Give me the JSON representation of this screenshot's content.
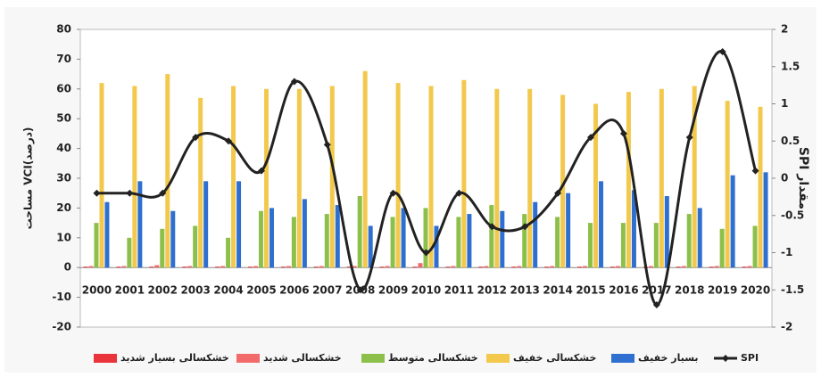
{
  "chart_data": {
    "type": "bar",
    "categories": [
      "2000",
      "2001",
      "2002",
      "2003",
      "2004",
      "2005",
      "2006",
      "2007",
      "2008",
      "2009",
      "2010",
      "2011",
      "2012",
      "2013",
      "2014",
      "2015",
      "2016",
      "2017",
      "2018",
      "2019",
      "2020"
    ],
    "series": [
      {
        "name": "خشکسالی بسیار شدید",
        "color": "#e8343a",
        "values": [
          0.3,
          0.3,
          0.3,
          0.3,
          0.3,
          0.3,
          0.3,
          0.3,
          0.3,
          0.3,
          0.3,
          0.3,
          0.3,
          0.3,
          0.3,
          0.3,
          0.3,
          0.3,
          0.3,
          0.3,
          0.3
        ]
      },
      {
        "name": "خشکسالی شدید",
        "color": "#f26a6a",
        "values": [
          0.5,
          0.5,
          0.8,
          0.5,
          0.5,
          0.5,
          0.5,
          0.5,
          0.5,
          0.5,
          1.5,
          0.5,
          0.5,
          0.5,
          0.5,
          0.5,
          0.5,
          0.5,
          0.5,
          0.5,
          0.5
        ]
      },
      {
        "name": "خشکسالی متوسط",
        "color": "#8dc04a",
        "values": [
          15,
          10,
          13,
          14,
          10,
          19,
          17,
          18,
          24,
          17,
          20,
          17,
          21,
          18,
          17,
          15,
          15,
          15,
          18,
          13,
          14
        ]
      },
      {
        "name": "خشکسالی خفیف",
        "color": "#f2c94c",
        "values": [
          62,
          61,
          65,
          57,
          61,
          60,
          60,
          61,
          66,
          62,
          61,
          63,
          60,
          60,
          58,
          55,
          59,
          60,
          61,
          56,
          54
        ]
      },
      {
        "name": "بسیار خفیف",
        "color": "#2f6fd0",
        "values": [
          22,
          29,
          19,
          29,
          29,
          20,
          23,
          21,
          14,
          20,
          14,
          18,
          19,
          22,
          25,
          29,
          26,
          24,
          20,
          31,
          32
        ]
      },
      {
        "name": "SPI",
        "color": "#222222",
        "axis": "y2",
        "values": [
          -0.2,
          -0.2,
          -0.2,
          0.55,
          0.5,
          0.1,
          1.3,
          0.45,
          -1.5,
          -0.2,
          -1.0,
          -0.2,
          -0.65,
          -0.65,
          -0.2,
          0.55,
          0.6,
          -1.7,
          0.55,
          1.7,
          0.1
        ]
      }
    ],
    "ylabel": "مساحت VCI(درصد)",
    "y2label": "SPI مقدار",
    "ylim": [
      -20,
      80
    ],
    "yticks": [
      -20,
      -10,
      0,
      10,
      20,
      30,
      40,
      50,
      60,
      70,
      80
    ],
    "y2lim": [
      -2,
      2
    ],
    "y2ticks": [
      -2,
      -1.5,
      -1,
      -0.5,
      0,
      0.5,
      1,
      1.5,
      2
    ],
    "grid": false
  }
}
